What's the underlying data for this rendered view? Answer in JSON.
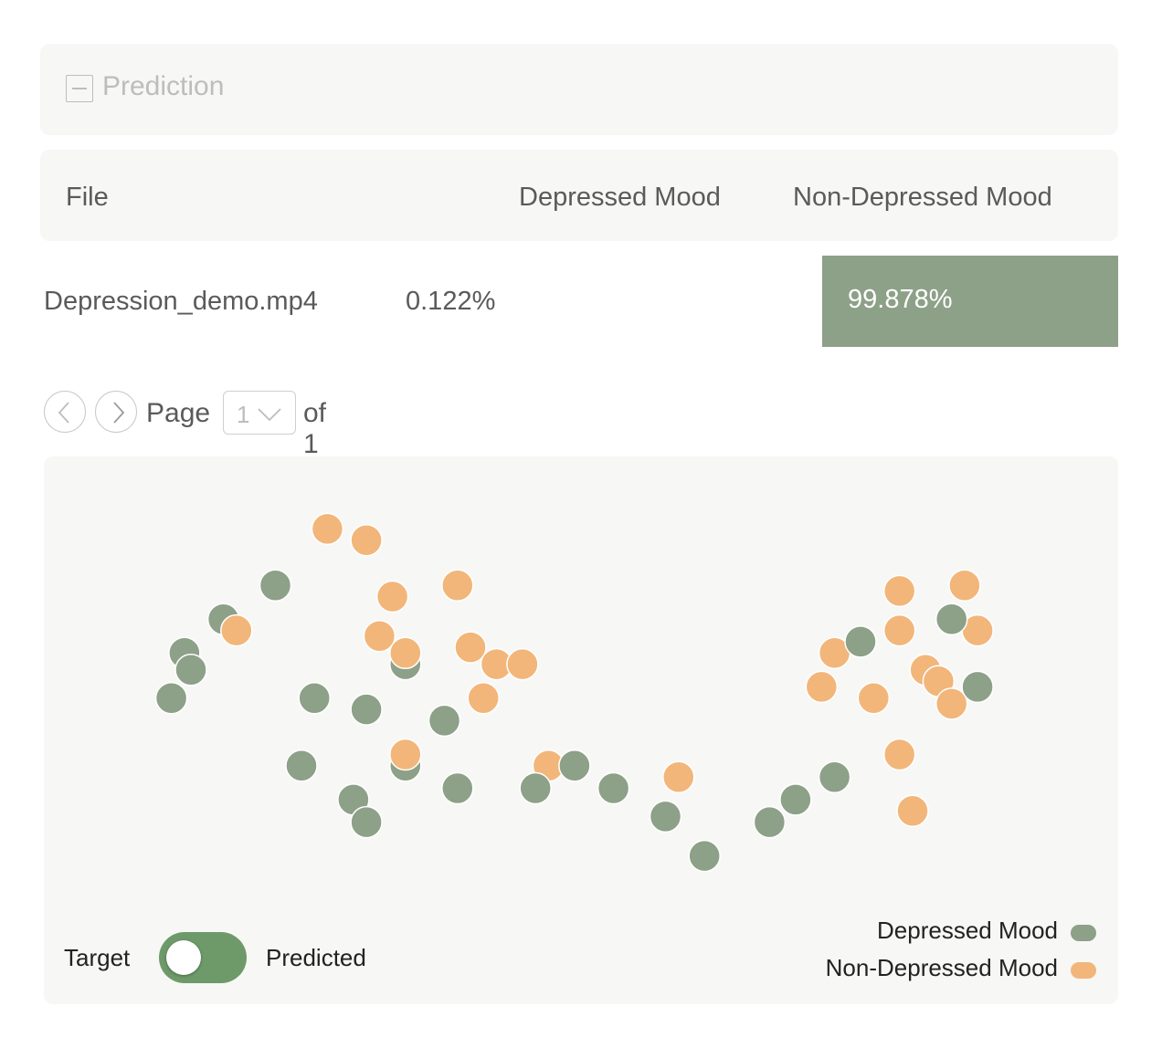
{
  "prediction": {
    "title": "Prediction"
  },
  "table": {
    "headers": {
      "file": "File",
      "depressed": "Depressed Mood",
      "non_depressed": "Non-Depressed Mood"
    },
    "rows": [
      {
        "file": "Depression_demo.mp4",
        "depressed": "0.122%",
        "non_depressed": "99.878%"
      }
    ]
  },
  "pagination": {
    "page_label": "Page",
    "current_page": "1",
    "of_label": "of 1"
  },
  "toggle": {
    "left_label": "Target",
    "right_label": "Predicted"
  },
  "colors": {
    "depressed": "#8da088",
    "non_depressed": "#f2b67a",
    "panel": "#f7f7f5",
    "toggle": "#6e9a6a"
  },
  "icons": {
    "collapse": "minus-square-icon",
    "prev": "chevron-left-icon",
    "next": "chevron-right-icon",
    "dropdown": "chevron-down-icon"
  },
  "chart_data": {
    "type": "scatter",
    "series": [
      {
        "name": "Depressed Mood",
        "color": "#8da088",
        "points": [
          [
            -2.0,
            1.5
          ],
          [
            -2.4,
            1.2
          ],
          [
            -2.7,
            0.9
          ],
          [
            -2.65,
            0.75
          ],
          [
            -2.8,
            0.5
          ],
          [
            -1.7,
            0.5
          ],
          [
            -1.0,
            0.8
          ],
          [
            -1.3,
            0.4
          ],
          [
            -0.7,
            0.3
          ],
          [
            -1.0,
            -0.1
          ],
          [
            -1.8,
            -0.1
          ],
          [
            -0.6,
            -0.3
          ],
          [
            -1.4,
            -0.4
          ],
          [
            -1.3,
            -0.6
          ],
          [
            0.3,
            -0.1
          ],
          [
            0.6,
            -0.3
          ],
          [
            0.0,
            -0.3
          ],
          [
            1.0,
            -0.55
          ],
          [
            1.3,
            -0.9
          ],
          [
            2.5,
            1.0
          ],
          [
            3.2,
            1.2
          ],
          [
            3.4,
            0.6
          ],
          [
            2.3,
            -0.2
          ],
          [
            2.0,
            -0.4
          ],
          [
            1.8,
            -0.6
          ]
        ]
      },
      {
        "name": "Non-Depressed Mood",
        "color": "#f2b67a",
        "points": [
          [
            -1.6,
            2.0
          ],
          [
            -1.3,
            1.9
          ],
          [
            -1.1,
            1.4
          ],
          [
            -0.6,
            1.5
          ],
          [
            -2.3,
            1.1
          ],
          [
            -1.2,
            1.05
          ],
          [
            -1.0,
            0.9
          ],
          [
            -0.5,
            0.95
          ],
          [
            -0.3,
            0.8
          ],
          [
            -0.1,
            0.8
          ],
          [
            -0.4,
            0.5
          ],
          [
            -1.0,
            0.0
          ],
          [
            0.1,
            -0.1
          ],
          [
            1.1,
            -0.2
          ],
          [
            2.8,
            1.45
          ],
          [
            3.3,
            1.5
          ],
          [
            2.8,
            1.1
          ],
          [
            3.4,
            1.1
          ],
          [
            2.3,
            0.9
          ],
          [
            3.0,
            0.75
          ],
          [
            3.1,
            0.65
          ],
          [
            2.2,
            0.6
          ],
          [
            2.6,
            0.5
          ],
          [
            3.2,
            0.45
          ],
          [
            2.8,
            0.0
          ],
          [
            2.9,
            -0.5
          ]
        ]
      }
    ],
    "legend": [
      "Depressed Mood",
      "Non-Depressed Mood"
    ],
    "legend_position": "bottom-right",
    "xlim": [
      -3.5,
      4.2
    ],
    "ylim": [
      -1.0,
      2.4
    ],
    "grid": false,
    "title": "",
    "xlabel": "",
    "ylabel": ""
  }
}
